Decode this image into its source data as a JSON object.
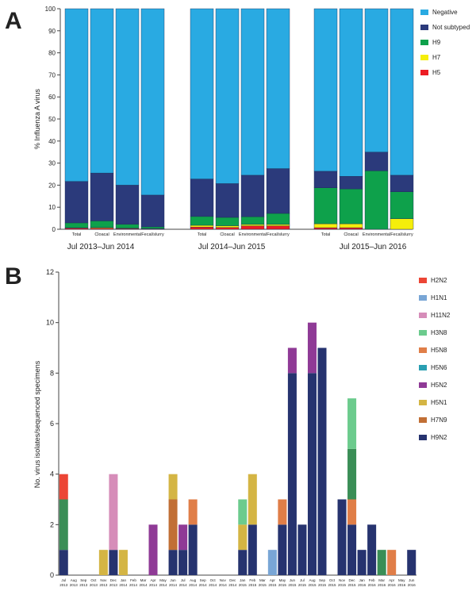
{
  "panels": {
    "a": "A",
    "b": "B"
  },
  "colors": {
    "Negative": "#29aae2",
    "Not subtyped": "#2b3a7b",
    "H9": "#0ea14b",
    "H7": "#f5ee0b",
    "H5": "#ec1c24",
    "H2N2": "#ec4535",
    "H1N1": "#79a6d6",
    "H11N2": "#d68db9",
    "H3N8": "#6ccb8d",
    "H5N8": "#e07e48",
    "H5N6": "#2a9fb2",
    "H5N2": "#8f3a96",
    "H5N1": "#d4b544",
    "H7N9": "#c16f35",
    "H9N2": "#26336f",
    "H9N2_B": "#3a8e56"
  },
  "chart_data": [
    {
      "type": "bar",
      "stacked": true,
      "ylabel": "% Influenza A virus",
      "ylim": [
        0,
        100
      ],
      "yticks": [
        "0",
        "10",
        "20",
        "30",
        "40",
        "50",
        "60",
        "70",
        "80",
        "90",
        "100"
      ],
      "legend_position": "top-right",
      "legend": [
        "Negative",
        "Not subtyped",
        "H9",
        "H7",
        "H5"
      ],
      "periods": [
        "Jul 2013–Jun 2014",
        "Jul 2014–Jun 2015",
        "Jul 2015–Jun 2016"
      ],
      "groups": [
        {
          "period": 0,
          "category": "Total",
          "H5": 0.5,
          "H7": 0.2,
          "H9": 2.2,
          "Not subtyped": 18.8,
          "Negative": 78.3
        },
        {
          "period": 0,
          "category": "Cloacal",
          "H5": 0.5,
          "H7": 0.3,
          "H9": 3.0,
          "Not subtyped": 21.7,
          "Negative": 74.5
        },
        {
          "period": 0,
          "category": "Environmental",
          "H5": 0.3,
          "H7": 0.2,
          "H9": 1.8,
          "Not subtyped": 17.7,
          "Negative": 80.0
        },
        {
          "period": 0,
          "category": "Fecal/slurry",
          "H5": 0.2,
          "H7": 0.1,
          "H9": 0.8,
          "Not subtyped": 14.4,
          "Negative": 84.5
        },
        {
          "period": 1,
          "category": "Total",
          "H5": 1.0,
          "H7": 0.8,
          "H9": 4.0,
          "Not subtyped": 17.0,
          "Negative": 77.2
        },
        {
          "period": 1,
          "category": "Cloacal",
          "H5": 0.8,
          "H7": 0.8,
          "H9": 3.8,
          "Not subtyped": 15.3,
          "Negative": 79.3
        },
        {
          "period": 1,
          "category": "Environmental",
          "H5": 1.5,
          "H7": 0.7,
          "H9": 3.5,
          "Not subtyped": 18.8,
          "Negative": 75.5
        },
        {
          "period": 1,
          "category": "Fecal/slurry",
          "H5": 1.5,
          "H7": 0.7,
          "H9": 5.0,
          "Not subtyped": 20.3,
          "Negative": 72.5
        },
        {
          "period": 2,
          "category": "Total",
          "H5": 0.7,
          "H7": 1.8,
          "H9": 16.3,
          "Not subtyped": 7.5,
          "Negative": 73.7
        },
        {
          "period": 2,
          "category": "Cloacal",
          "H5": 0.7,
          "H7": 1.8,
          "H9": 15.8,
          "Not subtyped": 5.7,
          "Negative": 76.0
        },
        {
          "period": 2,
          "category": "Environmental",
          "H5": 0,
          "H7": 0,
          "H9": 26.5,
          "Not subtyped": 8.5,
          "Negative": 65.0
        },
        {
          "period": 2,
          "category": "Fecal/slurry",
          "H5": 0,
          "H7": 4.8,
          "H9": 12.2,
          "Not subtyped": 7.5,
          "Negative": 75.5
        }
      ]
    },
    {
      "type": "bar",
      "stacked": true,
      "ylabel": "No. virus isolates/sequenced specimens",
      "ylim": [
        0,
        12
      ],
      "yticks": [
        "0",
        "2",
        "4",
        "6",
        "8",
        "10",
        "12"
      ],
      "legend_position": "top-right",
      "legend": [
        "H2N2",
        "H1N1",
        "H11N2",
        "H3N8",
        "H5N8",
        "H5N6",
        "H5N2",
        "H5N1",
        "H7N9",
        "H9N2"
      ],
      "months": [
        [
          "Jul",
          "2013"
        ],
        [
          "Aug",
          "2013"
        ],
        [
          "Sep",
          "2013"
        ],
        [
          "Oct",
          "2013"
        ],
        [
          "Nov",
          "2013"
        ],
        [
          "Dec",
          "2013"
        ],
        [
          "Jan",
          "2014"
        ],
        [
          "Feb",
          "2014"
        ],
        [
          "Mar",
          "2014"
        ],
        [
          "Apr",
          "2014"
        ],
        [
          "May",
          "2014"
        ],
        [
          "Jun",
          "2014"
        ],
        [
          "Jul",
          "2014"
        ],
        [
          "Aug",
          "2014"
        ],
        [
          "Sep",
          "2014"
        ],
        [
          "Oct",
          "2014"
        ],
        [
          "Nov",
          "2014"
        ],
        [
          "Dec",
          "2014"
        ],
        [
          "Jan",
          "2015"
        ],
        [
          "Feb",
          "2015"
        ],
        [
          "Mar",
          "2015"
        ],
        [
          "Apr",
          "2015"
        ],
        [
          "May",
          "2015"
        ],
        [
          "Jun",
          "2015"
        ],
        [
          "Jul",
          "2015"
        ],
        [
          "Aug",
          "2015"
        ],
        [
          "Sep",
          "2015"
        ],
        [
          "Oct",
          "2015"
        ],
        [
          "Nov",
          "2015"
        ],
        [
          "Dec",
          "2015"
        ],
        [
          "Jan",
          "2016"
        ],
        [
          "Feb",
          "2016"
        ],
        [
          "Mar",
          "2016"
        ],
        [
          "Apr",
          "2016"
        ],
        [
          "May",
          "2016"
        ],
        [
          "Jun",
          "2016"
        ]
      ],
      "stacks": [
        [
          [
            "H9N2",
            1
          ],
          [
            "H3N8B",
            2
          ],
          [
            "H2N2",
            1
          ]
        ],
        [],
        [],
        [],
        [
          [
            "H5N1",
            1
          ]
        ],
        [
          [
            "H9N2",
            1
          ],
          [
            "H11N2",
            3
          ]
        ],
        [
          [
            "H5N1",
            1
          ]
        ],
        [],
        [],
        [
          [
            "H5N2",
            2
          ]
        ],
        [],
        [
          [
            "H9N2",
            1
          ],
          [
            "H7N9",
            2
          ],
          [
            "H5N1",
            1
          ]
        ],
        [
          [
            "H9N2",
            1
          ],
          [
            "H5N2",
            1
          ]
        ],
        [
          [
            "H9N2",
            2
          ],
          [
            "H5N8",
            1
          ]
        ],
        [],
        [],
        [],
        [],
        [
          [
            "H9N2",
            1
          ],
          [
            "H5N1",
            1
          ],
          [
            "H3N8",
            1
          ]
        ],
        [
          [
            "H9N2",
            2
          ],
          [
            "H5N1",
            2
          ]
        ],
        [],
        [
          [
            "H1N1",
            1
          ]
        ],
        [
          [
            "H9N2",
            2
          ],
          [
            "H5N8",
            1
          ]
        ],
        [
          [
            "H9N2",
            8
          ],
          [
            "H5N2",
            1
          ]
        ],
        [
          [
            "H9N2",
            2
          ]
        ],
        [
          [
            "H9N2",
            8
          ],
          [
            "H5N2",
            2
          ]
        ],
        [
          [
            "H9N2",
            9
          ]
        ],
        [],
        [
          [
            "H9N2",
            3
          ]
        ],
        [
          [
            "H9N2",
            2
          ],
          [
            "H5N8",
            1
          ],
          [
            "H3N8B",
            2
          ],
          [
            "H3N8",
            2
          ]
        ],
        [
          [
            "H9N2",
            1
          ]
        ],
        [
          [
            "H9N2",
            2
          ]
        ],
        [
          [
            "H3N8B",
            1
          ]
        ],
        [
          [
            "H5N8",
            1
          ]
        ],
        [],
        [
          [
            "H9N2",
            1
          ]
        ]
      ]
    }
  ]
}
